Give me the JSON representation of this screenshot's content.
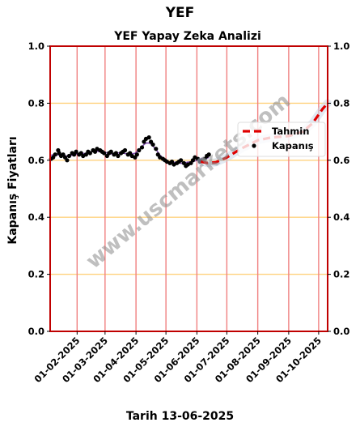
{
  "header": {
    "suptitle": "YEF"
  },
  "footer": {
    "date_label": "Tarih 13-06-2025"
  },
  "watermark": "www.uscmarkets.com",
  "colors": {
    "frame": "#c00000",
    "hgrid": "#ffd27f",
    "vgrid": "#f08080",
    "forecast": "#e00000",
    "close": "#000000",
    "trend": "#6a2fa0"
  },
  "chart_data": {
    "type": "line",
    "title": "YEF Yapay Zeka Analizi",
    "ylabel": "Kapanış Fiyatları",
    "xlabel": "",
    "ylim": [
      0.0,
      1.0
    ],
    "xlim": [
      "2025-01-05",
      "2025-10-10"
    ],
    "yticks": [
      0.0,
      0.2,
      0.4,
      0.6,
      0.8,
      1.0
    ],
    "ytick_labels": [
      "0.0",
      "0.2",
      "0.4",
      "0.6",
      "0.8",
      "1.0"
    ],
    "xticks": [
      "2025-02-01",
      "2025-03-01",
      "2025-04-01",
      "2025-05-01",
      "2025-06-01",
      "2025-07-01",
      "2025-08-01",
      "2025-09-01",
      "2025-10-01"
    ],
    "xtick_labels": [
      "01-02-2025",
      "01-03-2025",
      "01-04-2025",
      "01-05-2025",
      "01-06-2025",
      "01-07-2025",
      "01-08-2025",
      "01-09-2025",
      "01-10-2025"
    ],
    "grid": true,
    "legend_position": "right",
    "series": [
      {
        "name": "Tahmin",
        "style": "dashed",
        "points": [
          [
            "2025-06-05",
            0.595
          ],
          [
            "2025-06-12",
            0.59
          ],
          [
            "2025-06-20",
            0.593
          ],
          [
            "2025-07-01",
            0.61
          ],
          [
            "2025-07-15",
            0.64
          ],
          [
            "2025-08-01",
            0.67
          ],
          [
            "2025-08-15",
            0.68
          ],
          [
            "2025-09-01",
            0.685
          ],
          [
            "2025-09-15",
            0.7
          ],
          [
            "2025-09-25",
            0.73
          ],
          [
            "2025-10-05",
            0.78
          ],
          [
            "2025-10-10",
            0.8
          ]
        ]
      },
      {
        "name": "Kapanış",
        "style": "points",
        "points": [
          [
            "2025-01-06",
            0.605
          ],
          [
            "2025-01-08",
            0.61
          ],
          [
            "2025-01-10",
            0.62
          ],
          [
            "2025-01-13",
            0.635
          ],
          [
            "2025-01-14",
            0.625
          ],
          [
            "2025-01-16",
            0.615
          ],
          [
            "2025-01-18",
            0.62
          ],
          [
            "2025-01-20",
            0.61
          ],
          [
            "2025-01-22",
            0.6
          ],
          [
            "2025-01-24",
            0.615
          ],
          [
            "2025-01-27",
            0.625
          ],
          [
            "2025-01-29",
            0.62
          ],
          [
            "2025-01-31",
            0.63
          ],
          [
            "2025-02-03",
            0.62
          ],
          [
            "2025-02-05",
            0.625
          ],
          [
            "2025-02-07",
            0.615
          ],
          [
            "2025-02-10",
            0.62
          ],
          [
            "2025-02-12",
            0.63
          ],
          [
            "2025-02-14",
            0.625
          ],
          [
            "2025-02-17",
            0.635
          ],
          [
            "2025-02-19",
            0.63
          ],
          [
            "2025-02-21",
            0.64
          ],
          [
            "2025-02-24",
            0.635
          ],
          [
            "2025-02-26",
            0.63
          ],
          [
            "2025-02-28",
            0.625
          ],
          [
            "2025-03-03",
            0.615
          ],
          [
            "2025-03-05",
            0.625
          ],
          [
            "2025-03-07",
            0.63
          ],
          [
            "2025-03-10",
            0.62
          ],
          [
            "2025-03-12",
            0.625
          ],
          [
            "2025-03-14",
            0.615
          ],
          [
            "2025-03-17",
            0.625
          ],
          [
            "2025-03-19",
            0.63
          ],
          [
            "2025-03-21",
            0.635
          ],
          [
            "2025-03-24",
            0.62
          ],
          [
            "2025-03-26",
            0.625
          ],
          [
            "2025-03-28",
            0.615
          ],
          [
            "2025-03-31",
            0.61
          ],
          [
            "2025-04-02",
            0.62
          ],
          [
            "2025-04-04",
            0.635
          ],
          [
            "2025-04-07",
            0.645
          ],
          [
            "2025-04-09",
            0.665
          ],
          [
            "2025-04-11",
            0.675
          ],
          [
            "2025-04-14",
            0.68
          ],
          [
            "2025-04-16",
            0.665
          ],
          [
            "2025-04-18",
            0.655
          ],
          [
            "2025-04-21",
            0.64
          ],
          [
            "2025-04-23",
            0.62
          ],
          [
            "2025-04-25",
            0.61
          ],
          [
            "2025-04-28",
            0.605
          ],
          [
            "2025-04-30",
            0.6
          ],
          [
            "2025-05-02",
            0.595
          ],
          [
            "2025-05-05",
            0.59
          ],
          [
            "2025-05-07",
            0.595
          ],
          [
            "2025-05-09",
            0.585
          ],
          [
            "2025-05-12",
            0.59
          ],
          [
            "2025-05-14",
            0.595
          ],
          [
            "2025-05-16",
            0.6
          ],
          [
            "2025-05-19",
            0.59
          ],
          [
            "2025-05-21",
            0.58
          ],
          [
            "2025-05-23",
            0.585
          ],
          [
            "2025-05-26",
            0.59
          ],
          [
            "2025-05-28",
            0.6
          ],
          [
            "2025-05-30",
            0.61
          ],
          [
            "2025-06-02",
            0.605
          ],
          [
            "2025-06-04",
            0.595
          ],
          [
            "2025-06-06",
            0.6
          ],
          [
            "2025-06-09",
            0.605
          ],
          [
            "2025-06-11",
            0.615
          ],
          [
            "2025-06-13",
            0.62
          ]
        ]
      }
    ]
  }
}
